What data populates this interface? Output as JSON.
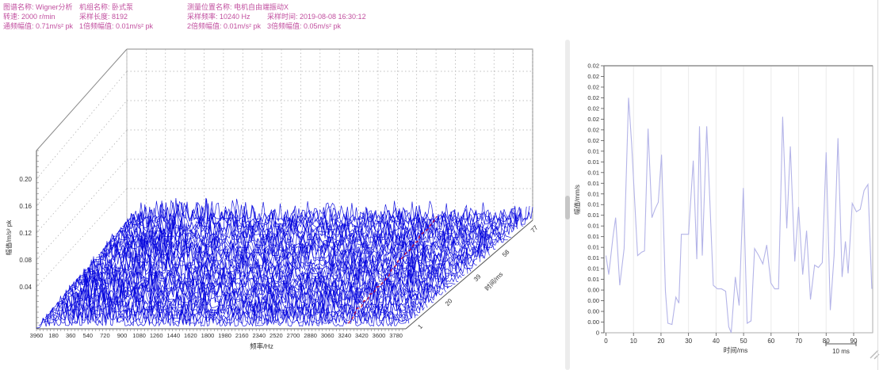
{
  "header": {
    "text_color": "#c14f9f",
    "map_name": "图谱名称: Wigner分析",
    "machine_name": "机组名称: 卧式泵",
    "position_name": "测量位置名称: 电机自由端振动X",
    "speed": "转速: 2000 r/min",
    "sample_length": "采样长度: 8192",
    "sample_rate": "采样频率: 10240 Hz",
    "sample_time": "采样时间: 2019-08-08 16:30:12",
    "overall_amp": "通频幅值: 0.71m/s² pk",
    "amp_1x": "1倍频幅值: 0.01m/s² pk",
    "amp_2x": "2倍频幅值: 0.01m/s² pk",
    "amp_3x": "3倍频幅值: 0.05m/s² pk"
  },
  "chart_data": [
    {
      "type": "area",
      "subtype": "waterfall-3d-spectrum",
      "title": "",
      "xlabel": "频率/Hz",
      "x_tick_labels": [
        "3960",
        "180",
        "360",
        "540",
        "720",
        "900",
        "1080",
        "1260",
        "1440",
        "1620",
        "1800",
        "1980",
        "2160",
        "2340",
        "2520",
        "2700",
        "2880",
        "3060",
        "3240",
        "3420",
        "3600",
        "3780"
      ],
      "ylabel": "幅值/m/s² pk",
      "y_tick_labels": [
        "0.04",
        "0.08",
        "0.12",
        "0.16",
        "0.20"
      ],
      "zlabel": "时间/ms",
      "z_tick_labels": [
        "1",
        "20",
        "39",
        "58",
        "77"
      ],
      "xlim": [
        0,
        3960
      ],
      "ylim": [
        0,
        0.24
      ],
      "zlim": [
        1,
        77
      ],
      "grid": true,
      "legend": "none",
      "line_color": "#0000dd",
      "cursor_line_color": "#cc1133",
      "n_traces": 42,
      "noise_seed": 20190808,
      "description": "Dense broadband random-noise spectra stacked over time (waterfall); amplitudes mostly below 0.05 m/s² pk; red dashed cursor line runs along the time axis near 2900 Hz."
    },
    {
      "type": "line",
      "title": "",
      "xlabel": "时间/ms",
      "ylabel": "幅值/mm/s",
      "x_ticks": [
        0,
        10,
        20,
        30,
        40,
        50,
        60,
        70,
        80,
        90
      ],
      "y_tick_labels_bottom_to_top": [
        "0",
        "0.00",
        "0.00",
        "0.00",
        "0.00",
        "0.01",
        "0.01",
        "0.01",
        "0.01",
        "0.01",
        "0.01",
        "0.01",
        "0.01",
        "0.01",
        "0.01",
        "0.01",
        "0.01",
        "0.01",
        "0.02",
        "0.02",
        "0.02",
        "0.02",
        "0.02",
        "0.02",
        "0.02",
        "0.02"
      ],
      "xlim": [
        0,
        97
      ],
      "ylim": [
        0,
        0.0225
      ],
      "grid": "vertical-only",
      "legend": "none",
      "scale_bar_label": "10 ms",
      "line_color": "#b4b4e8",
      "x": [
        0,
        1,
        2.5,
        3.5,
        5,
        6.6,
        8.2,
        9.3,
        11.5,
        13,
        14,
        15.3,
        16.7,
        17.8,
        19,
        20.2,
        21.6,
        22.5,
        24,
        25.4,
        26.5,
        27.4,
        29,
        30,
        31.7,
        33,
        34,
        35,
        36.6,
        37.6,
        39,
        40.5,
        42,
        43.5,
        44.6,
        45.5,
        47,
        48.4,
        49.9,
        51.3,
        52.7,
        54,
        55.5,
        57,
        58.4,
        59.9,
        61.3,
        62.7,
        64.2,
        65.7,
        67,
        68.6,
        70,
        71.5,
        72.9,
        74.3,
        75.8,
        77.2,
        78.6,
        80,
        81.5,
        82.9,
        84.3,
        85.8,
        87,
        88,
        89.5,
        91,
        92.4,
        93.8,
        95.2,
        96.6
      ],
      "y": [
        0.0065,
        0.0049,
        0.008,
        0.0097,
        0.004,
        0.0071,
        0.0198,
        0.016,
        0.0065,
        0.0068,
        0.0069,
        0.0172,
        0.0097,
        0.0104,
        0.011,
        0.015,
        0.0035,
        0.0008,
        0.0007,
        0.003,
        0.0025,
        0.0083,
        0.0083,
        0.0083,
        0.0145,
        0.0062,
        0.0174,
        0.0065,
        0.0174,
        0.012,
        0.004,
        0.0037,
        0.0037,
        0.0035,
        0.0005,
        0.0,
        0.0047,
        0.0023,
        0.0122,
        0.0008,
        0.001,
        0.0071,
        0.0065,
        0.0058,
        0.0074,
        0.0042,
        0.0037,
        0.0037,
        0.0182,
        0.0088,
        0.0157,
        0.006,
        0.0106,
        0.0049,
        0.0086,
        0.0028,
        0.0057,
        0.0055,
        0.0059,
        0.0152,
        0.0019,
        0.0065,
        0.0164,
        0.0047,
        0.0077,
        0.005,
        0.0109,
        0.0102,
        0.0104,
        0.012,
        0.0125,
        0.0037
      ]
    }
  ]
}
